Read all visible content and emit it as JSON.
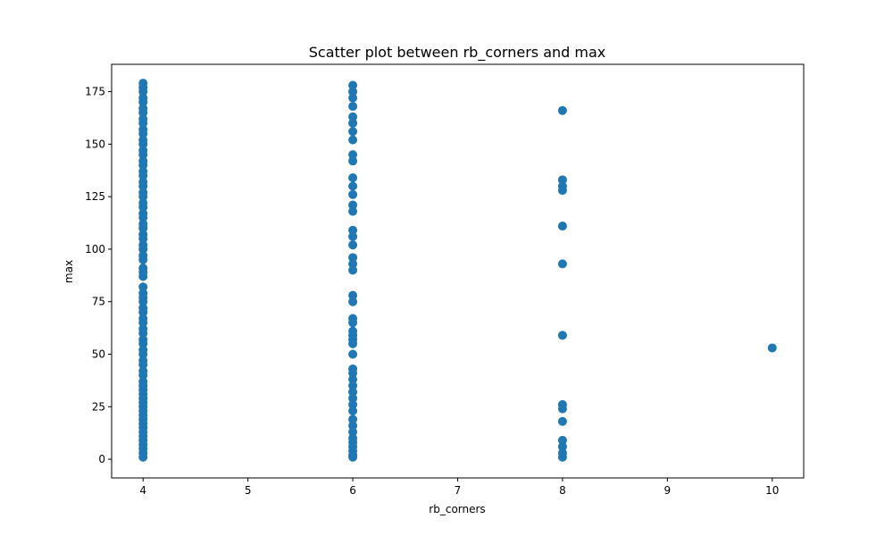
{
  "chart_data": {
    "type": "scatter",
    "title": "Scatter plot between rb_corners and max",
    "xlabel": "rb_corners",
    "ylabel": "max",
    "xlim": [
      3.7,
      10.3
    ],
    "ylim": [
      -8.9,
      188
    ],
    "xticks": [
      4,
      5,
      6,
      7,
      8,
      9,
      10
    ],
    "yticks": [
      0,
      25,
      50,
      75,
      100,
      125,
      150,
      175
    ],
    "grid": false,
    "marker_color": "#1f77b4",
    "points": [
      {
        "x": 4,
        "y": 179
      },
      {
        "x": 4,
        "y": 177
      },
      {
        "x": 4,
        "y": 175
      },
      {
        "x": 4,
        "y": 172
      },
      {
        "x": 4,
        "y": 170
      },
      {
        "x": 4,
        "y": 167
      },
      {
        "x": 4,
        "y": 165
      },
      {
        "x": 4,
        "y": 162
      },
      {
        "x": 4,
        "y": 160
      },
      {
        "x": 4,
        "y": 157
      },
      {
        "x": 4,
        "y": 155
      },
      {
        "x": 4,
        "y": 152
      },
      {
        "x": 4,
        "y": 150
      },
      {
        "x": 4,
        "y": 147
      },
      {
        "x": 4,
        "y": 145
      },
      {
        "x": 4,
        "y": 142
      },
      {
        "x": 4,
        "y": 140
      },
      {
        "x": 4,
        "y": 137
      },
      {
        "x": 4,
        "y": 135
      },
      {
        "x": 4,
        "y": 132
      },
      {
        "x": 4,
        "y": 130
      },
      {
        "x": 4,
        "y": 127
      },
      {
        "x": 4,
        "y": 125
      },
      {
        "x": 4,
        "y": 122
      },
      {
        "x": 4,
        "y": 120
      },
      {
        "x": 4,
        "y": 117
      },
      {
        "x": 4,
        "y": 115
      },
      {
        "x": 4,
        "y": 112
      },
      {
        "x": 4,
        "y": 110
      },
      {
        "x": 4,
        "y": 107
      },
      {
        "x": 4,
        "y": 105
      },
      {
        "x": 4,
        "y": 102
      },
      {
        "x": 4,
        "y": 100
      },
      {
        "x": 4,
        "y": 97
      },
      {
        "x": 4,
        "y": 95
      },
      {
        "x": 4,
        "y": 91
      },
      {
        "x": 4,
        "y": 89
      },
      {
        "x": 4,
        "y": 87
      },
      {
        "x": 4,
        "y": 82
      },
      {
        "x": 4,
        "y": 79
      },
      {
        "x": 4,
        "y": 77
      },
      {
        "x": 4,
        "y": 75
      },
      {
        "x": 4,
        "y": 72
      },
      {
        "x": 4,
        "y": 70
      },
      {
        "x": 4,
        "y": 67
      },
      {
        "x": 4,
        "y": 65
      },
      {
        "x": 4,
        "y": 62
      },
      {
        "x": 4,
        "y": 60
      },
      {
        "x": 4,
        "y": 57
      },
      {
        "x": 4,
        "y": 55
      },
      {
        "x": 4,
        "y": 52
      },
      {
        "x": 4,
        "y": 50
      },
      {
        "x": 4,
        "y": 47
      },
      {
        "x": 4,
        "y": 45
      },
      {
        "x": 4,
        "y": 42
      },
      {
        "x": 4,
        "y": 40
      },
      {
        "x": 4,
        "y": 37
      },
      {
        "x": 4,
        "y": 35
      },
      {
        "x": 4,
        "y": 33
      },
      {
        "x": 4,
        "y": 31
      },
      {
        "x": 4,
        "y": 29
      },
      {
        "x": 4,
        "y": 27
      },
      {
        "x": 4,
        "y": 25
      },
      {
        "x": 4,
        "y": 23
      },
      {
        "x": 4,
        "y": 21
      },
      {
        "x": 4,
        "y": 19
      },
      {
        "x": 4,
        "y": 17
      },
      {
        "x": 4,
        "y": 15
      },
      {
        "x": 4,
        "y": 13
      },
      {
        "x": 4,
        "y": 11
      },
      {
        "x": 4,
        "y": 9
      },
      {
        "x": 4,
        "y": 7
      },
      {
        "x": 4,
        "y": 5
      },
      {
        "x": 4,
        "y": 3
      },
      {
        "x": 4,
        "y": 1
      },
      {
        "x": 6,
        "y": 178
      },
      {
        "x": 6,
        "y": 175
      },
      {
        "x": 6,
        "y": 172
      },
      {
        "x": 6,
        "y": 168
      },
      {
        "x": 6,
        "y": 163
      },
      {
        "x": 6,
        "y": 160
      },
      {
        "x": 6,
        "y": 156
      },
      {
        "x": 6,
        "y": 152
      },
      {
        "x": 6,
        "y": 145
      },
      {
        "x": 6,
        "y": 142
      },
      {
        "x": 6,
        "y": 134
      },
      {
        "x": 6,
        "y": 130
      },
      {
        "x": 6,
        "y": 126
      },
      {
        "x": 6,
        "y": 121
      },
      {
        "x": 6,
        "y": 118
      },
      {
        "x": 6,
        "y": 109
      },
      {
        "x": 6,
        "y": 106
      },
      {
        "x": 6,
        "y": 102
      },
      {
        "x": 6,
        "y": 96
      },
      {
        "x": 6,
        "y": 93
      },
      {
        "x": 6,
        "y": 90
      },
      {
        "x": 6,
        "y": 78
      },
      {
        "x": 6,
        "y": 75
      },
      {
        "x": 6,
        "y": 67
      },
      {
        "x": 6,
        "y": 65
      },
      {
        "x": 6,
        "y": 61
      },
      {
        "x": 6,
        "y": 59
      },
      {
        "x": 6,
        "y": 57
      },
      {
        "x": 6,
        "y": 55
      },
      {
        "x": 6,
        "y": 50
      },
      {
        "x": 6,
        "y": 43
      },
      {
        "x": 6,
        "y": 41
      },
      {
        "x": 6,
        "y": 38
      },
      {
        "x": 6,
        "y": 35
      },
      {
        "x": 6,
        "y": 32
      },
      {
        "x": 6,
        "y": 29
      },
      {
        "x": 6,
        "y": 26
      },
      {
        "x": 6,
        "y": 23
      },
      {
        "x": 6,
        "y": 19
      },
      {
        "x": 6,
        "y": 16
      },
      {
        "x": 6,
        "y": 13
      },
      {
        "x": 6,
        "y": 10
      },
      {
        "x": 6,
        "y": 8
      },
      {
        "x": 6,
        "y": 6
      },
      {
        "x": 6,
        "y": 4
      },
      {
        "x": 6,
        "y": 2
      },
      {
        "x": 6,
        "y": 1
      },
      {
        "x": 8,
        "y": 166
      },
      {
        "x": 8,
        "y": 133
      },
      {
        "x": 8,
        "y": 130
      },
      {
        "x": 8,
        "y": 128
      },
      {
        "x": 8,
        "y": 111
      },
      {
        "x": 8,
        "y": 93
      },
      {
        "x": 8,
        "y": 59
      },
      {
        "x": 8,
        "y": 26
      },
      {
        "x": 8,
        "y": 24
      },
      {
        "x": 8,
        "y": 18
      },
      {
        "x": 8,
        "y": 9
      },
      {
        "x": 8,
        "y": 6
      },
      {
        "x": 8,
        "y": 3
      },
      {
        "x": 8,
        "y": 1
      },
      {
        "x": 10,
        "y": 53
      }
    ]
  }
}
